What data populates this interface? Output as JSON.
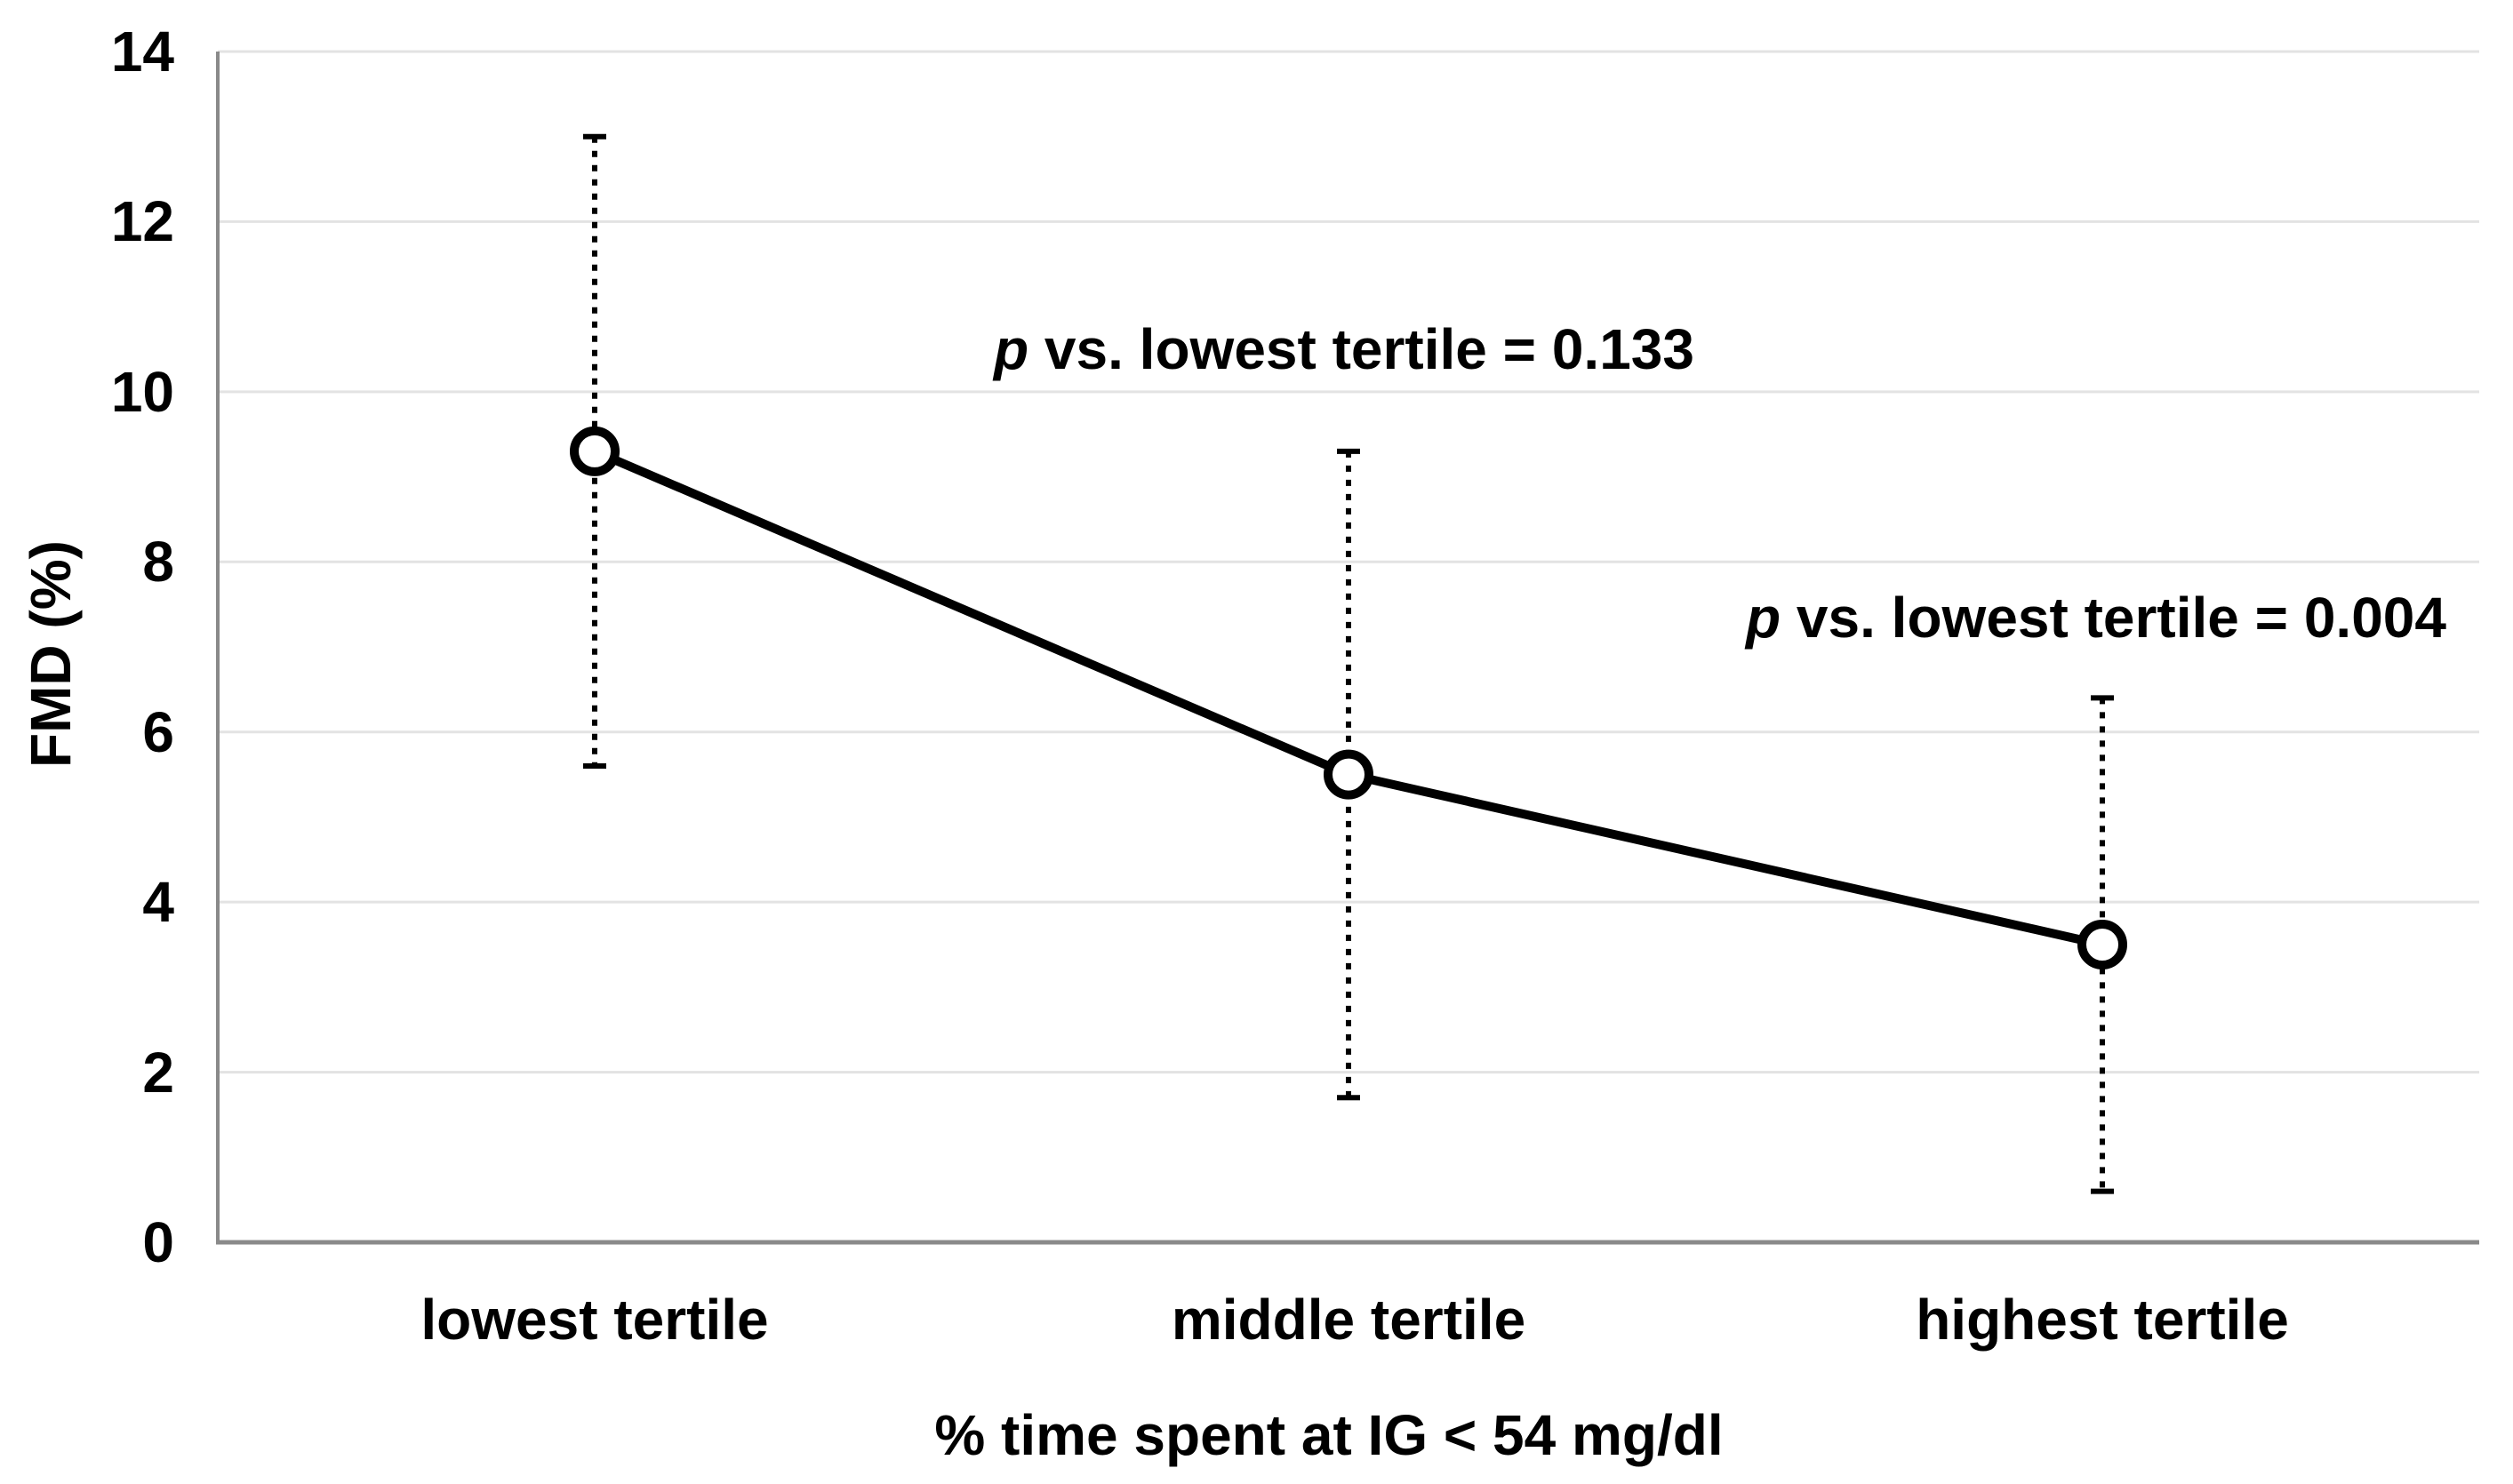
{
  "chart_data": {
    "type": "line",
    "title": "",
    "categories": [
      "lowest tertile",
      "middle tertile",
      "highest tertile"
    ],
    "series": [
      {
        "name": "FMD",
        "values": [
          9.3,
          5.5,
          3.5
        ],
        "error_low": [
          5.6,
          1.7,
          0.6
        ],
        "error_high": [
          13.0,
          9.3,
          6.4
        ]
      }
    ],
    "xlabel": "% time spent at IG < 54 mg/dl",
    "ylabel": "FMD (%)",
    "ylim": [
      0,
      14
    ],
    "ytick_step": 2,
    "y_tick_labels": [
      "14",
      "12",
      "10",
      "8",
      "6",
      "4",
      "2",
      "0"
    ],
    "grid": true,
    "legend": "none",
    "marker": "open-circle",
    "line_color": "#000000",
    "marker_fill": "#ffffff",
    "error_bar_style": "dotted",
    "gridline_color": "#e3e3e3",
    "axis_color": "#8a8a8a",
    "annotations": [
      {
        "p": "p",
        "rest": " vs. lowest tertile = 0.133"
      },
      {
        "p": "p",
        "rest": " vs. lowest tertile = 0.004"
      }
    ]
  }
}
